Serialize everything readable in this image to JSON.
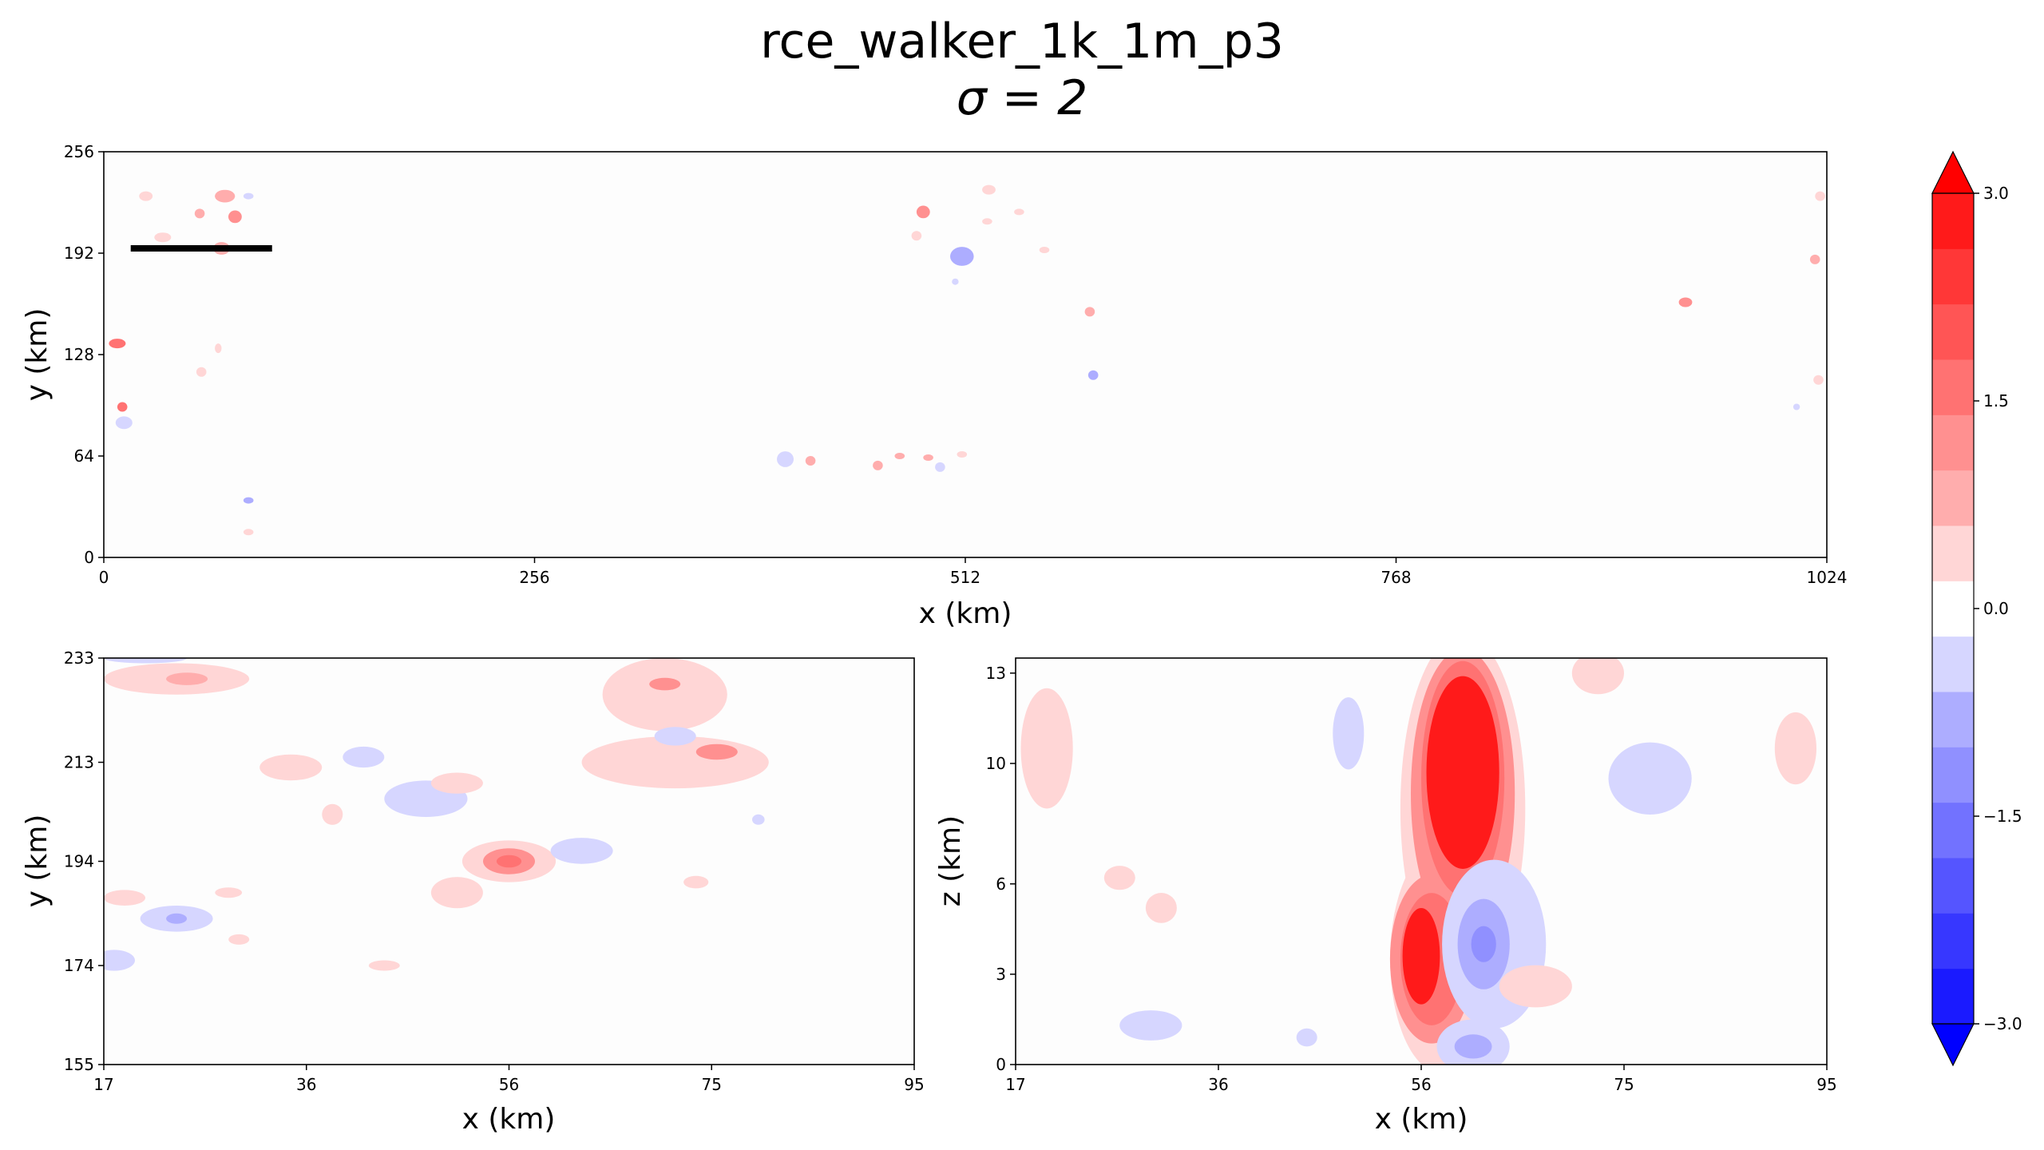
{
  "figure": {
    "title": "rce_walker_1k_1m_p3",
    "subtitle": "σ = 2"
  },
  "chart_data": [
    {
      "type": "heatmap",
      "panel": "top",
      "xlabel": "x (km)",
      "ylabel": "y (km)",
      "xlim": [
        0,
        1024
      ],
      "ylim": [
        0,
        256
      ],
      "xticks": [
        "0",
        "256",
        "512",
        "768",
        "1024"
      ],
      "yticks": [
        "0",
        "64",
        "128",
        "192",
        "256"
      ],
      "highlight_line": {
        "x": [
          16,
          100
        ],
        "y": 195
      },
      "blobs": [
        {
          "x": 8,
          "y": 135,
          "rx": 5,
          "ry": 3,
          "v": 1.4
        },
        {
          "x": 11,
          "y": 95,
          "rx": 3,
          "ry": 3,
          "v": 1.4
        },
        {
          "x": 12,
          "y": 85,
          "rx": 5,
          "ry": 4,
          "v": -0.5
        },
        {
          "x": 25,
          "y": 228,
          "rx": 4,
          "ry": 3,
          "v": 0.5
        },
        {
          "x": 35,
          "y": 202,
          "rx": 5,
          "ry": 3,
          "v": 0.5
        },
        {
          "x": 57,
          "y": 217,
          "rx": 3,
          "ry": 3,
          "v": 0.8
        },
        {
          "x": 70,
          "y": 195,
          "rx": 5,
          "ry": 4,
          "v": 0.6
        },
        {
          "x": 72,
          "y": 228,
          "rx": 6,
          "ry": 4,
          "v": 0.7
        },
        {
          "x": 78,
          "y": 215,
          "rx": 4,
          "ry": 4,
          "v": 1.0
        },
        {
          "x": 86,
          "y": 228,
          "rx": 3,
          "ry": 2,
          "v": -0.5
        },
        {
          "x": 58,
          "y": 117,
          "rx": 3,
          "ry": 3,
          "v": 0.5
        },
        {
          "x": 68,
          "y": 132,
          "rx": 2,
          "ry": 3,
          "v": 0.5
        },
        {
          "x": 86,
          "y": 16,
          "rx": 3,
          "ry": 2,
          "v": 0.5
        },
        {
          "x": 86,
          "y": 36,
          "rx": 3,
          "ry": 2,
          "v": -0.6
        },
        {
          "x": 405,
          "y": 62,
          "rx": 5,
          "ry": 5,
          "v": -0.5
        },
        {
          "x": 420,
          "y": 61,
          "rx": 3,
          "ry": 3,
          "v": 0.6
        },
        {
          "x": 460,
          "y": 58,
          "rx": 3,
          "ry": 3,
          "v": 0.6
        },
        {
          "x": 473,
          "y": 64,
          "rx": 3,
          "ry": 2,
          "v": 0.6
        },
        {
          "x": 490,
          "y": 63,
          "rx": 3,
          "ry": 2,
          "v": 0.6
        },
        {
          "x": 497,
          "y": 57,
          "rx": 3,
          "ry": 3,
          "v": -0.5
        },
        {
          "x": 510,
          "y": 65,
          "rx": 3,
          "ry": 2,
          "v": 0.5
        },
        {
          "x": 487,
          "y": 218,
          "rx": 4,
          "ry": 4,
          "v": 1.0
        },
        {
          "x": 483,
          "y": 203,
          "rx": 3,
          "ry": 3,
          "v": 0.5
        },
        {
          "x": 510,
          "y": 190,
          "rx": 7,
          "ry": 6,
          "v": -0.6
        },
        {
          "x": 526,
          "y": 232,
          "rx": 4,
          "ry": 3,
          "v": 0.5
        },
        {
          "x": 525,
          "y": 212,
          "rx": 3,
          "ry": 2,
          "v": 0.5
        },
        {
          "x": 544,
          "y": 218,
          "rx": 3,
          "ry": 2,
          "v": 0.4
        },
        {
          "x": 559,
          "y": 194,
          "rx": 3,
          "ry": 2,
          "v": 0.4
        },
        {
          "x": 586,
          "y": 155,
          "rx": 3,
          "ry": 3,
          "v": 0.6
        },
        {
          "x": 588,
          "y": 115,
          "rx": 3,
          "ry": 3,
          "v": -0.8
        },
        {
          "x": 506,
          "y": 174,
          "rx": 2,
          "ry": 2,
          "v": -0.5
        },
        {
          "x": 940,
          "y": 161,
          "rx": 4,
          "ry": 3,
          "v": 1.0
        },
        {
          "x": 1017,
          "y": 188,
          "rx": 3,
          "ry": 3,
          "v": 0.6
        },
        {
          "x": 1020,
          "y": 228,
          "rx": 3,
          "ry": 3,
          "v": 0.4
        },
        {
          "x": 1019,
          "y": 112,
          "rx": 3,
          "ry": 3,
          "v": 0.4
        },
        {
          "x": 1006,
          "y": 95,
          "rx": 2,
          "ry": 2,
          "v": -0.5
        }
      ]
    },
    {
      "type": "heatmap",
      "panel": "bottom-left",
      "xlabel": "x (km)",
      "ylabel": "y (km)",
      "xlim": [
        17,
        95
      ],
      "ylim": [
        155,
        233
      ],
      "xticks": [
        "17",
        "36",
        "56",
        "75",
        "95"
      ],
      "yticks": [
        "155",
        "174",
        "194",
        "213",
        "233"
      ],
      "blobs": [
        {
          "x": 24,
          "y": 229,
          "rx": 7,
          "ry": 3,
          "v": 0.5
        },
        {
          "x": 25,
          "y": 229,
          "rx": 2,
          "ry": 1.2,
          "v": 0.9
        },
        {
          "x": 21,
          "y": 233,
          "rx": 4,
          "ry": 1,
          "v": -0.5
        },
        {
          "x": 35,
          "y": 212,
          "rx": 3,
          "ry": 2.5,
          "v": 0.5
        },
        {
          "x": 42,
          "y": 214,
          "rx": 2,
          "ry": 2,
          "v": -0.5
        },
        {
          "x": 48,
          "y": 206,
          "rx": 4,
          "ry": 3.5,
          "v": -0.5
        },
        {
          "x": 51,
          "y": 209,
          "rx": 2.5,
          "ry": 2,
          "v": 0.5
        },
        {
          "x": 39,
          "y": 203,
          "rx": 1,
          "ry": 2,
          "v": 0.5
        },
        {
          "x": 56,
          "y": 194,
          "rx": 4.5,
          "ry": 4,
          "v": 0.5
        },
        {
          "x": 56,
          "y": 194,
          "rx": 2.5,
          "ry": 2.5,
          "v": 1.1
        },
        {
          "x": 56,
          "y": 194,
          "rx": 1.2,
          "ry": 1.2,
          "v": 1.6
        },
        {
          "x": 63,
          "y": 196,
          "rx": 3,
          "ry": 2.5,
          "v": -0.5
        },
        {
          "x": 51,
          "y": 188,
          "rx": 2.5,
          "ry": 3,
          "v": 0.5
        },
        {
          "x": 71,
          "y": 226,
          "rx": 6,
          "ry": 7,
          "v": 0.5
        },
        {
          "x": 72,
          "y": 213,
          "rx": 9,
          "ry": 5,
          "v": 0.5
        },
        {
          "x": 71,
          "y": 228,
          "rx": 1.5,
          "ry": 1.2,
          "v": 1.0
        },
        {
          "x": 76,
          "y": 215,
          "rx": 2,
          "ry": 1.5,
          "v": 1.0
        },
        {
          "x": 72,
          "y": 218,
          "rx": 2,
          "ry": 1.8,
          "v": -0.5
        },
        {
          "x": 24,
          "y": 183,
          "rx": 3.5,
          "ry": 2.5,
          "v": -0.5
        },
        {
          "x": 24,
          "y": 183,
          "rx": 1,
          "ry": 1,
          "v": -1.0
        },
        {
          "x": 19,
          "y": 187,
          "rx": 2,
          "ry": 1.5,
          "v": 0.5
        },
        {
          "x": 29,
          "y": 188,
          "rx": 1.3,
          "ry": 1,
          "v": 0.5
        },
        {
          "x": 30,
          "y": 179,
          "rx": 1,
          "ry": 1,
          "v": 0.5
        },
        {
          "x": 18,
          "y": 175,
          "rx": 2,
          "ry": 2,
          "v": -0.5
        },
        {
          "x": 44,
          "y": 174,
          "rx": 1.5,
          "ry": 1,
          "v": 0.5
        },
        {
          "x": 74,
          "y": 190,
          "rx": 1.2,
          "ry": 1.2,
          "v": 0.5
        },
        {
          "x": 80,
          "y": 202,
          "rx": 0.6,
          "ry": 1,
          "v": -0.5
        }
      ]
    },
    {
      "type": "heatmap",
      "panel": "bottom-right",
      "xlabel": "x (km)",
      "ylabel": "z (km)",
      "xlim": [
        17,
        95
      ],
      "ylim": [
        0,
        13.5
      ],
      "xticks": [
        "17",
        "36",
        "56",
        "75",
        "95"
      ],
      "yticks": [
        "0",
        "3",
        "6",
        "10",
        "13"
      ],
      "blobs": [
        {
          "x": 60,
          "y": 8.5,
          "rx": 6,
          "ry": 5.8,
          "v": 0.4
        },
        {
          "x": 58,
          "y": 3.5,
          "rx": 5,
          "ry": 3.8,
          "v": 0.4
        },
        {
          "x": 60,
          "y": 9,
          "rx": 5,
          "ry": 4.8,
          "v": 1.0
        },
        {
          "x": 57,
          "y": 3.5,
          "rx": 4,
          "ry": 2.8,
          "v": 1.0
        },
        {
          "x": 60,
          "y": 9.5,
          "rx": 4,
          "ry": 3.9,
          "v": 1.8
        },
        {
          "x": 57,
          "y": 3.5,
          "rx": 3,
          "ry": 2.2,
          "v": 1.8
        },
        {
          "x": 60,
          "y": 9.7,
          "rx": 3.5,
          "ry": 3.2,
          "v": 2.8
        },
        {
          "x": 56,
          "y": 3.6,
          "rx": 1.8,
          "ry": 1.6,
          "v": 2.8
        },
        {
          "x": 63,
          "y": 4,
          "rx": 5,
          "ry": 2.8,
          "v": -0.5
        },
        {
          "x": 62,
          "y": 4,
          "rx": 2.5,
          "ry": 1.5,
          "v": -0.9
        },
        {
          "x": 62,
          "y": 4,
          "rx": 1.2,
          "ry": 0.6,
          "v": -1.3
        },
        {
          "x": 61,
          "y": 0.6,
          "rx": 3.5,
          "ry": 0.9,
          "v": -0.5
        },
        {
          "x": 61,
          "y": 0.6,
          "rx": 1.8,
          "ry": 0.4,
          "v": -0.9
        },
        {
          "x": 67,
          "y": 2.6,
          "rx": 3.5,
          "ry": 0.7,
          "v": 0.5
        },
        {
          "x": 20,
          "y": 10.5,
          "rx": 2.5,
          "ry": 2,
          "v": 0.5
        },
        {
          "x": 49,
          "y": 11,
          "rx": 1.5,
          "ry": 1.2,
          "v": -0.5
        },
        {
          "x": 78,
          "y": 9.5,
          "rx": 4,
          "ry": 1.2,
          "v": -0.5
        },
        {
          "x": 92,
          "y": 10.5,
          "rx": 2,
          "ry": 1.2,
          "v": 0.5
        },
        {
          "x": 73,
          "y": 13,
          "rx": 2.5,
          "ry": 0.7,
          "v": 0.5
        },
        {
          "x": 30,
          "y": 1.3,
          "rx": 3,
          "ry": 0.5,
          "v": -0.5
        },
        {
          "x": 27,
          "y": 6.2,
          "rx": 1.5,
          "ry": 0.4,
          "v": 0.5
        },
        {
          "x": 31,
          "y": 5.2,
          "rx": 1.5,
          "ry": 0.5,
          "v": 0.5
        },
        {
          "x": 45,
          "y": 0.9,
          "rx": 1,
          "ry": 0.3,
          "v": -0.5
        }
      ]
    }
  ],
  "colorbar": {
    "ticks": [
      "3.0",
      "1.5",
      "0.0",
      "−1.5",
      "−3.0"
    ],
    "tick_values": [
      3.0,
      1.5,
      0.0,
      -1.5,
      -3.0
    ],
    "vmin": -3.0,
    "vmax": 3.0,
    "levels": 15,
    "colors": [
      "#0000ff",
      "#1a1aff",
      "#3737ff",
      "#5555ff",
      "#7272ff",
      "#9090ff",
      "#adadff",
      "#d6d6ff",
      "#ffffff",
      "#ffd6d6",
      "#ffadad",
      "#ff9090",
      "#ff7272",
      "#ff5555",
      "#ff3737",
      "#ff1a1a",
      "#ff0000"
    ],
    "extend": "both"
  }
}
